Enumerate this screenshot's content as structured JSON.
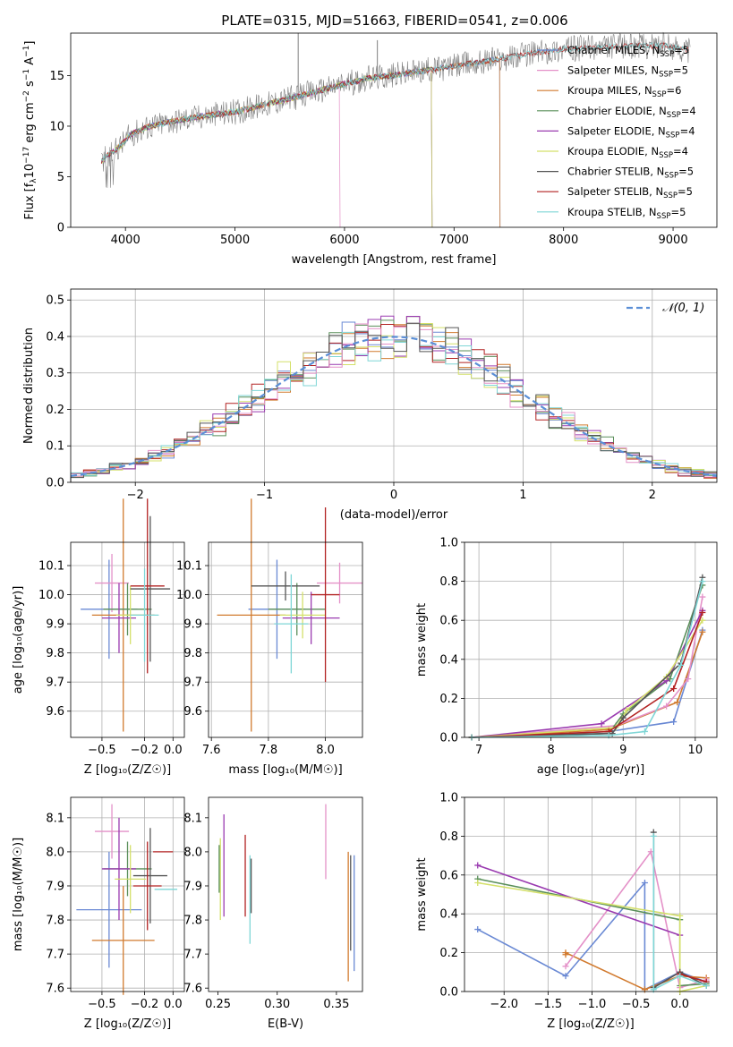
{
  "figure": {
    "title": "PLATE=0315, MJD=51663, FIBERID=0541, z=0.006"
  },
  "chart_data": [
    {
      "type": "line",
      "name": "spectrum",
      "xlabel": "wavelength [Angstrom, rest frame]",
      "ylabel_parts": [
        "Flux [f",
        "λ",
        "10",
        "−17",
        " erg cm",
        "−2",
        " s",
        "−1",
        " A",
        "−1",
        "]"
      ],
      "xlim": [
        3500,
        9400
      ],
      "ylim": [
        0,
        19.2
      ],
      "xticks": [
        4000,
        5000,
        6000,
        7000,
        8000,
        9000
      ],
      "yticks": [
        0,
        5,
        10,
        15
      ],
      "grid": false,
      "legend_position": "top-right",
      "series": [
        {
          "name": "Chabrier MILES, N",
          "sub": "SSP",
          "suffix": "=5",
          "color": "#6a89d4",
          "cutoff": 7420
        },
        {
          "name": "Salpeter MILES, N",
          "sub": "SSP",
          "suffix": "=5",
          "color": "#e491c8",
          "cutoff": 5960
        },
        {
          "name": "Kroupa MILES, N",
          "sub": "SSP",
          "suffix": "=6",
          "color": "#d17a2e",
          "cutoff": 7420
        },
        {
          "name": "Chabrier ELODIE, N",
          "sub": "SSP",
          "suffix": "=4",
          "color": "#5a8f5a",
          "cutoff": 6800
        },
        {
          "name": "Salpeter ELODIE, N",
          "sub": "SSP",
          "suffix": "=4",
          "color": "#9a3bb0",
          "cutoff": 6800
        },
        {
          "name": "Kroupa ELODIE, N",
          "sub": "SSP",
          "suffix": "=4",
          "color": "#d4e06a",
          "cutoff": 6800
        },
        {
          "name": "Chabrier STELIB, N",
          "sub": "SSP",
          "suffix": "=5",
          "color": "#555555",
          "cutoff": 9150
        },
        {
          "name": "Salpeter STELIB, N",
          "sub": "SSP",
          "suffix": "=5",
          "color": "#b22222",
          "cutoff": 9150
        },
        {
          "name": "Kroupa STELIB, N",
          "sub": "SSP",
          "suffix": "=5",
          "color": "#7fd6d6",
          "cutoff": 9150
        }
      ],
      "data": {
        "color": "#808080",
        "xrange": [
          3780,
          9160
        ]
      },
      "continuum": [
        [
          3780,
          6.5
        ],
        [
          3850,
          7.2
        ],
        [
          3950,
          8.0
        ],
        [
          4050,
          9.2
        ],
        [
          4200,
          9.9
        ],
        [
          4400,
          10.4
        ],
        [
          4700,
          11.0
        ],
        [
          5000,
          11.4
        ],
        [
          5300,
          12.2
        ],
        [
          5600,
          13.0
        ],
        [
          5900,
          13.9
        ],
        [
          6200,
          14.7
        ],
        [
          6500,
          15.1
        ],
        [
          6800,
          15.6
        ],
        [
          7100,
          16.1
        ],
        [
          7400,
          16.6
        ],
        [
          7700,
          17.2
        ],
        [
          8000,
          17.6
        ],
        [
          8300,
          17.8
        ],
        [
          8600,
          17.9
        ],
        [
          8900,
          18.0
        ],
        [
          9150,
          17.5
        ]
      ]
    },
    {
      "type": "histogram",
      "name": "residuals",
      "xlabel": "(data-model)/error",
      "ylabel": "Normed distribution",
      "xlim": [
        -2.5,
        2.5
      ],
      "ylim": [
        0,
        0.53
      ],
      "xticks": [
        -2,
        -1,
        0,
        1,
        2
      ],
      "yticks": [
        0,
        0.1,
        0.2,
        0.3,
        0.4,
        0.5
      ],
      "grid": true,
      "legend_position": "top-right",
      "legend_label": "𝒩(0, 1)",
      "bin_width": 0.1,
      "bin_start": -2.5,
      "gauss_color": "#5b8fd6",
      "jitter_series": [
        {
          "color": "#6a89d4",
          "seed": 1
        },
        {
          "color": "#d17a2e",
          "seed": 2
        },
        {
          "color": "#9a3bb0",
          "seed": 3
        },
        {
          "color": "#5a8f5a",
          "seed": 4
        },
        {
          "color": "#b22222",
          "seed": 5
        },
        {
          "color": "#d4e06a",
          "seed": 6
        },
        {
          "color": "#7fd6d6",
          "seed": 7
        },
        {
          "color": "#e491c8",
          "seed": 8
        },
        {
          "color": "#555555",
          "seed": 9
        }
      ]
    },
    {
      "type": "scatter",
      "name": "age-vs-Z",
      "xlabel": "Z [log₁₀(Z/Z☉)]",
      "ylabel": "age  [log₁₀(age/yr)]",
      "xlim": [
        -0.72,
        0.08
      ],
      "ylim": [
        9.51,
        10.18
      ],
      "xticks": [
        -0.5,
        -0.2,
        0.0
      ],
      "yticks": [
        9.6,
        9.7,
        9.8,
        9.9,
        10.0,
        10.1
      ],
      "grid": true,
      "points": [
        {
          "x": -0.45,
          "y": 9.95,
          "xerr": 0.2,
          "yerr": 0.17,
          "color": "#6a89d4"
        },
        {
          "x": -0.43,
          "y": 10.04,
          "xerr": 0.12,
          "yerr": 0.1,
          "color": "#e491c8"
        },
        {
          "x": -0.35,
          "y": 9.93,
          "xerr": 0.22,
          "yerr": 0.4,
          "color": "#d17a2e"
        },
        {
          "x": -0.32,
          "y": 9.95,
          "xerr": 0.17,
          "yerr": 0.09,
          "color": "#5a8f5a"
        },
        {
          "x": -0.38,
          "y": 9.92,
          "xerr": 0.12,
          "yerr": 0.12,
          "color": "#9a3bb0"
        },
        {
          "x": -0.3,
          "y": 9.93,
          "xerr": 0.1,
          "yerr": 0.1,
          "color": "#d4e06a"
        },
        {
          "x": -0.16,
          "y": 10.02,
          "xerr": 0.14,
          "yerr": 0.25,
          "color": "#555555"
        },
        {
          "x": -0.18,
          "y": 10.03,
          "xerr": 0.12,
          "yerr": 0.3,
          "color": "#b22222"
        },
        {
          "x": -0.2,
          "y": 9.93,
          "xerr": 0.1,
          "yerr": 0.16,
          "color": "#7fd6d6"
        }
      ]
    },
    {
      "type": "scatter",
      "name": "age-vs-mass",
      "xlabel": "mass [log₁₀(M/M☉)]",
      "ylabel": "",
      "xlim": [
        7.59,
        8.13
      ],
      "ylim": [
        9.51,
        10.18
      ],
      "xticks": [
        7.6,
        7.8,
        8.0
      ],
      "yticks": [
        9.6,
        9.7,
        9.8,
        9.9,
        10.0,
        10.1
      ],
      "grid": true,
      "points": [
        {
          "x": 7.83,
          "y": 9.95,
          "xerr": 0.1,
          "yerr": 0.17,
          "color": "#6a89d4"
        },
        {
          "x": 8.05,
          "y": 10.04,
          "xerr": 0.08,
          "yerr": 0.07,
          "color": "#e491c8"
        },
        {
          "x": 7.74,
          "y": 9.93,
          "xerr": 0.12,
          "yerr": 0.4,
          "color": "#d17a2e"
        },
        {
          "x": 7.9,
          "y": 9.95,
          "xerr": 0.1,
          "yerr": 0.09,
          "color": "#5a8f5a"
        },
        {
          "x": 7.95,
          "y": 9.92,
          "xerr": 0.1,
          "yerr": 0.09,
          "color": "#9a3bb0"
        },
        {
          "x": 7.92,
          "y": 9.93,
          "xerr": 0.08,
          "yerr": 0.08,
          "color": "#d4e06a"
        },
        {
          "x": 7.86,
          "y": 10.03,
          "xerr": 0.12,
          "yerr": 0.05,
          "color": "#555555"
        },
        {
          "x": 8.0,
          "y": 10.0,
          "xerr": 0.05,
          "yerr": 0.3,
          "color": "#b22222"
        },
        {
          "x": 7.88,
          "y": 9.9,
          "xerr": 0.06,
          "yerr": 0.17,
          "color": "#7fd6d6"
        }
      ]
    },
    {
      "type": "line",
      "name": "massweight-vs-age",
      "xlabel": "age  [log₁₀(age/yr)]",
      "ylabel": "mass weight",
      "xlim": [
        6.8,
        10.3
      ],
      "ylim": [
        0,
        1
      ],
      "xticks": [
        7,
        8,
        9,
        10
      ],
      "yticks": [
        0,
        0.2,
        0.4,
        0.6,
        0.8,
        1.0
      ],
      "grid": true,
      "series": [
        {
          "color": "#6a89d4",
          "points": [
            [
              6.9,
              0.0
            ],
            [
              8.8,
              0.03
            ],
            [
              9.7,
              0.08
            ],
            [
              10.1,
              0.55
            ]
          ]
        },
        {
          "color": "#d17a2e",
          "points": [
            [
              6.9,
              0.0
            ],
            [
              8.8,
              0.04
            ],
            [
              9.75,
              0.18
            ],
            [
              10.1,
              0.54
            ]
          ]
        },
        {
          "color": "#e491c8",
          "points": [
            [
              6.9,
              0.0
            ],
            [
              8.9,
              0.06
            ],
            [
              9.6,
              0.16
            ],
            [
              9.9,
              0.3
            ],
            [
              10.1,
              0.72
            ]
          ]
        },
        {
          "color": "#5a8f5a",
          "points": [
            [
              6.9,
              0.0
            ],
            [
              8.8,
              0.02
            ],
            [
              9.0,
              0.12
            ],
            [
              9.65,
              0.3
            ],
            [
              10.1,
              0.78
            ]
          ]
        },
        {
          "color": "#9a3bb0",
          "points": [
            [
              6.9,
              0.0
            ],
            [
              8.7,
              0.07
            ],
            [
              9.6,
              0.29
            ],
            [
              10.1,
              0.65
            ]
          ]
        },
        {
          "color": "#d4e06a",
          "points": [
            [
              6.9,
              0.0
            ],
            [
              8.9,
              0.05
            ],
            [
              9.05,
              0.14
            ],
            [
              9.6,
              0.31
            ],
            [
              10.1,
              0.6
            ]
          ]
        },
        {
          "color": "#555555",
          "points": [
            [
              6.9,
              0.0
            ],
            [
              8.85,
              0.02
            ],
            [
              9.0,
              0.1
            ],
            [
              9.8,
              0.38
            ],
            [
              10.1,
              0.82
            ]
          ]
        },
        {
          "color": "#b22222",
          "points": [
            [
              6.9,
              0.0
            ],
            [
              8.8,
              0.03
            ],
            [
              9.7,
              0.25
            ],
            [
              10.1,
              0.64
            ]
          ]
        },
        {
          "color": "#7fd6d6",
          "points": [
            [
              6.9,
              0.0
            ],
            [
              8.8,
              0.01
            ],
            [
              9.3,
              0.03
            ],
            [
              9.8,
              0.37
            ],
            [
              10.1,
              0.8
            ]
          ]
        }
      ]
    },
    {
      "type": "scatter",
      "name": "mass-vs-Z",
      "xlabel": "Z [log₁₀(Z/Z☉)]",
      "ylabel": "mass [log₁₀(M/M☉)]",
      "xlim": [
        -0.72,
        0.08
      ],
      "ylim": [
        7.59,
        8.16
      ],
      "xticks": [
        -0.5,
        -0.2,
        0.0
      ],
      "yticks": [
        7.6,
        7.7,
        7.8,
        7.9,
        8.0,
        8.1
      ],
      "grid": true,
      "points": [
        {
          "x": -0.45,
          "y": 7.83,
          "xerr": 0.23,
          "yerr": 0.17,
          "color": "#6a89d4"
        },
        {
          "x": -0.43,
          "y": 8.06,
          "xerr": 0.12,
          "yerr": 0.08,
          "color": "#e491c8"
        },
        {
          "x": -0.35,
          "y": 7.74,
          "xerr": 0.22,
          "yerr": 0.16,
          "color": "#d17a2e"
        },
        {
          "x": -0.32,
          "y": 7.95,
          "xerr": 0.17,
          "yerr": 0.08,
          "color": "#5a8f5a"
        },
        {
          "x": -0.38,
          "y": 7.95,
          "xerr": 0.12,
          "yerr": 0.15,
          "color": "#9a3bb0"
        },
        {
          "x": -0.3,
          "y": 7.92,
          "xerr": 0.11,
          "yerr": 0.1,
          "color": "#d4e06a"
        },
        {
          "x": -0.16,
          "y": 7.93,
          "xerr": 0.12,
          "yerr": 0.14,
          "color": "#555555"
        },
        {
          "x": -0.07,
          "y": 8.0,
          "xerr": 0.07,
          "yerr": 0.0,
          "color": "#b22222"
        },
        {
          "x": -0.18,
          "y": 7.9,
          "xerr": 0.1,
          "yerr": 0.13,
          "color": "#b22222"
        },
        {
          "x": -0.05,
          "y": 7.89,
          "xerr": 0.08,
          "yerr": 0.0,
          "color": "#7fd6d6"
        }
      ]
    },
    {
      "type": "scatter",
      "name": "mass-vs-ebv",
      "xlabel": "E(B-V)",
      "ylabel": "",
      "xlim": [
        0.242,
        0.372
      ],
      "ylim": [
        7.59,
        8.16
      ],
      "xticks": [
        0.25,
        0.3,
        0.35
      ],
      "yticks": [
        7.6,
        7.7,
        7.8,
        7.9,
        8.0,
        8.1
      ],
      "grid": false,
      "points": [
        {
          "x": 0.252,
          "y": 7.92,
          "xerr": 0,
          "yerr": 0.12,
          "color": "#d4e06a"
        },
        {
          "x": 0.255,
          "y": 7.96,
          "xerr": 0,
          "yerr": 0.15,
          "color": "#9a3bb0"
        },
        {
          "x": 0.251,
          "y": 7.95,
          "xerr": 0,
          "yerr": 0.07,
          "color": "#5a8f5a"
        },
        {
          "x": 0.273,
          "y": 7.93,
          "xerr": 0,
          "yerr": 0.12,
          "color": "#b22222"
        },
        {
          "x": 0.277,
          "y": 7.86,
          "xerr": 0,
          "yerr": 0.13,
          "color": "#7fd6d6"
        },
        {
          "x": 0.278,
          "y": 7.9,
          "xerr": 0,
          "yerr": 0.08,
          "color": "#555555"
        },
        {
          "x": 0.341,
          "y": 8.03,
          "xerr": 0,
          "yerr": 0.11,
          "color": "#e491c8"
        },
        {
          "x": 0.36,
          "y": 7.81,
          "xerr": 0,
          "yerr": 0.19,
          "color": "#d17a2e"
        },
        {
          "x": 0.365,
          "y": 7.82,
          "xerr": 0,
          "yerr": 0.17,
          "color": "#6a89d4"
        },
        {
          "x": 0.362,
          "y": 7.85,
          "xerr": 0,
          "yerr": 0.14,
          "color": "#555555"
        }
      ]
    },
    {
      "type": "line",
      "name": "massweight-vs-Z",
      "xlabel": "Z [log₁₀(Z/Z☉)]",
      "ylabel": "mass weight",
      "xlim": [
        -2.45,
        0.42
      ],
      "ylim": [
        0,
        1
      ],
      "xticks": [
        -2.0,
        -1.5,
        -1.0,
        -0.5,
        0.0
      ],
      "yticks": [
        0,
        0.2,
        0.4,
        0.6,
        0.8,
        1.0
      ],
      "grid": true,
      "series": [
        {
          "color": "#6a89d4",
          "points": [
            [
              -2.3,
              0.32
            ],
            [
              -1.3,
              0.08
            ],
            [
              -0.4,
              0.56
            ],
            [
              -0.4,
              0.01
            ],
            [
              0.0,
              0.1
            ],
            [
              0.3,
              0.05
            ]
          ]
        },
        {
          "color": "#d17a2e",
          "points": [
            [
              -1.3,
              0.19
            ],
            [
              -1.3,
              0.2
            ],
            [
              -0.4,
              0.01
            ],
            [
              0.0,
              0.08
            ],
            [
              0.3,
              0.07
            ]
          ]
        },
        {
          "color": "#e491c8",
          "points": [
            [
              -1.3,
              0.13
            ],
            [
              -0.33,
              0.72
            ],
            [
              0.0,
              0.02
            ],
            [
              0.3,
              0.06
            ]
          ]
        },
        {
          "color": "#5a8f5a",
          "points": [
            [
              -2.3,
              0.58
            ],
            [
              0.0,
              0.37
            ],
            [
              0.0,
              0.03
            ],
            [
              0.3,
              0.04
            ]
          ]
        },
        {
          "color": "#9a3bb0",
          "points": [
            [
              -2.3,
              0.65
            ],
            [
              0.0,
              0.29
            ]
          ]
        },
        {
          "color": "#d4e06a",
          "points": [
            [
              -2.3,
              0.56
            ],
            [
              0.0,
              0.39
            ],
            [
              0.0,
              0.0
            ],
            [
              0.3,
              0.03
            ]
          ]
        },
        {
          "color": "#555555",
          "points": [
            [
              -0.3,
              0.82
            ],
            [
              -0.3,
              0.02
            ],
            [
              0.0,
              0.1
            ],
            [
              0.3,
              0.03
            ]
          ]
        },
        {
          "color": "#b22222",
          "points": [
            [
              0.0,
              0.09
            ],
            [
              0.3,
              0.05
            ]
          ]
        },
        {
          "color": "#7fd6d6",
          "points": [
            [
              -0.3,
              0.8
            ],
            [
              -0.3,
              0.01
            ],
            [
              0.0,
              0.08
            ],
            [
              0.3,
              0.03
            ]
          ]
        }
      ]
    }
  ]
}
